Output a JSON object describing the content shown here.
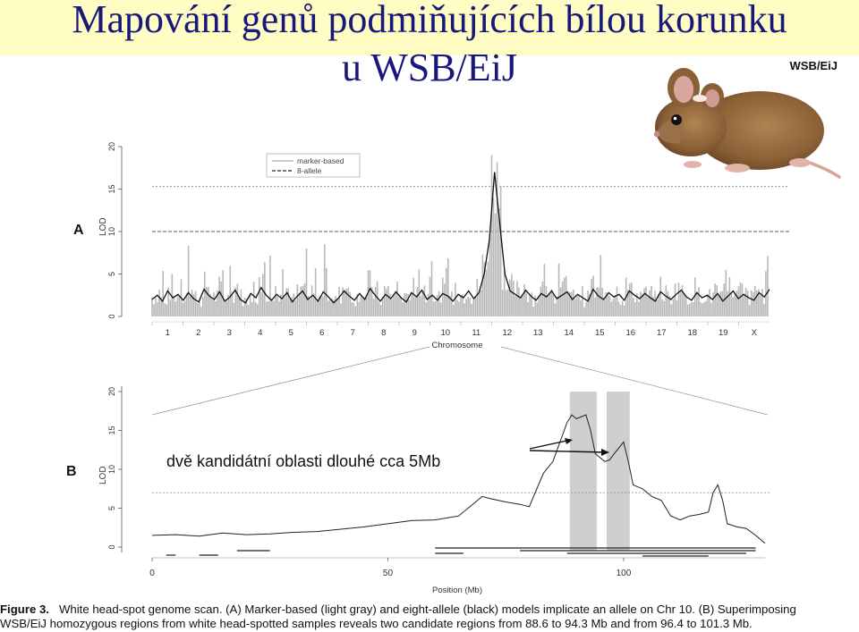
{
  "slide": {
    "title_line1": "Mapování genů podmiňujících bílou korunku",
    "title_line2": "u WSB/EiJ",
    "mouse_label": "WSB/EiJ",
    "annotation": "dvě kandidátní oblasti dlouhé cca 5Mb"
  },
  "caption": {
    "label": "Figure 3.",
    "line1": "White head-spot genome scan. (A) Marker-based (light gray) and eight-allele (black) models implicate an allele on Chr 10. (B) Superimposing",
    "line2": "WSB/EiJ homozygous regions from white head-spotted samples reveals two candidate regions from 88.6 to 94.3 Mb and from 96.4 to 101.3 Mb."
  },
  "colors": {
    "title_band": "#fffdc4",
    "title_text": "#18187a",
    "marker_based": "#b0b0b0",
    "eight_allele": "#111111",
    "highlight": "#cfcfcf"
  },
  "chart_data": [
    {
      "type": "line",
      "panel_label": "A",
      "ylabel": "LOD",
      "xlabel": "Chromosome",
      "ylim": [
        0,
        20
      ],
      "yticks": [
        "0",
        "5",
        "10",
        "15",
        "20"
      ],
      "categories": [
        "1",
        "2",
        "3",
        "4",
        "5",
        "6",
        "7",
        "8",
        "9",
        "10",
        "11",
        "12",
        "13",
        "14",
        "15",
        "16",
        "17",
        "18",
        "19",
        "X"
      ],
      "legend": [
        "marker-based",
        "8-allele"
      ],
      "legend_position": "top-left",
      "thresholds": [
        10,
        15.3
      ],
      "series": [
        {
          "name": "marker-based",
          "style": "light gray spikes",
          "peak_chromosome": "10",
          "peak_lod": 15
        },
        {
          "name": "8-allele",
          "style": "black line",
          "peak_chromosome": "10",
          "peak_lod": 17
        }
      ],
      "profile_8allele": [
        2,
        2.5,
        1.8,
        3,
        2.2,
        2.6,
        1.9,
        2.8,
        2.1,
        1.7,
        3.2,
        2.4,
        2.0,
        2.9,
        1.8,
        2.3,
        3.1,
        2.0,
        1.6,
        2.7,
        2.2,
        3.4,
        2.5,
        1.9,
        2.6,
        2.1,
        2.8,
        1.7,
        2.4,
        3.0,
        2.0,
        2.5,
        1.8,
        2.9,
        2.3,
        1.6,
        2.2,
        3.0,
        2.4,
        1.9,
        2.7,
        2.0,
        3.3,
        2.5,
        1.8,
        2.6,
        2.1,
        2.9,
        2.2,
        1.7,
        2.8,
        2.3,
        3.1,
        2.0,
        2.5,
        1.9,
        2.7,
        2.4,
        1.8,
        2.6,
        2.2,
        3.0,
        2.1,
        2.8,
        5,
        9,
        17,
        11,
        5,
        3,
        2.6,
        2.2,
        3.1,
        2.4,
        1.9,
        2.7,
        2.3,
        3.0,
        2.1,
        2.5,
        2.9,
        2.0,
        2.6,
        2.2,
        1.8,
        3.2,
        2.4,
        2.0,
        2.8,
        2.3,
        2.6,
        1.9,
        3.0,
        2.5,
        2.1,
        2.7,
        2.2,
        1.8,
        2.9,
        2.4,
        2.0,
        2.6,
        3.1,
        2.3,
        1.9,
        2.8,
        2.2,
        2.5,
        2.0,
        2.7,
        1.8,
        2.4,
        3.0,
        2.1,
        2.6,
        2.2,
        1.9,
        2.8,
        2.3,
        3.2
      ]
    },
    {
      "type": "line",
      "panel_label": "B",
      "ylabel": "LOD",
      "xlabel": "Position (Mb)",
      "xlim": [
        0,
        130
      ],
      "ylim": [
        0,
        20
      ],
      "xticks": [
        "0",
        "50",
        "100"
      ],
      "yticks": [
        "0",
        "5",
        "10",
        "15",
        "20"
      ],
      "threshold": 7,
      "highlight_regions_mb": [
        [
          88.6,
          94.3
        ],
        [
          96.4,
          101.3
        ]
      ],
      "series": [
        {
          "name": "8-allele",
          "x": [
            0,
            5,
            10,
            15,
            20,
            25,
            30,
            35,
            40,
            45,
            50,
            55,
            60,
            65,
            68,
            70,
            72,
            75,
            78,
            80,
            83,
            85,
            88,
            89,
            90,
            92,
            93,
            94,
            95,
            96,
            97,
            98,
            100,
            101,
            102,
            104,
            106,
            108,
            110,
            112,
            114,
            116,
            118,
            119,
            120,
            121,
            122,
            124,
            126,
            128,
            130
          ],
          "y": [
            1.5,
            1.6,
            1.4,
            1.8,
            1.6,
            1.7,
            1.9,
            2.0,
            2.3,
            2.6,
            3.0,
            3.4,
            3.5,
            4.0,
            5.5,
            6.5,
            6.2,
            5.8,
            5.5,
            5.2,
            9.5,
            11,
            16,
            17,
            16.5,
            17,
            15,
            12,
            11.5,
            11,
            11.2,
            12,
            13.5,
            11,
            8,
            7.5,
            6.5,
            6,
            4,
            3.5,
            4,
            4.2,
            4.5,
            7,
            8,
            6,
            3,
            2.6,
            2.4,
            1.5,
            0.5
          ]
        }
      ]
    }
  ]
}
